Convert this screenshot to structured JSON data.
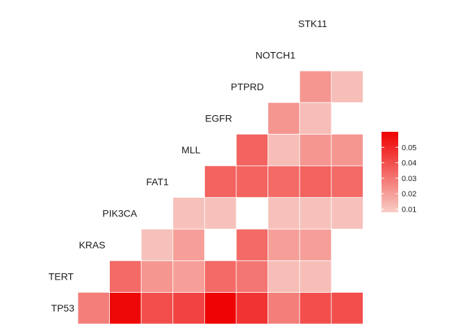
{
  "chart_data": {
    "type": "heatmap",
    "title": "",
    "genes": [
      "TP53",
      "TERT",
      "KRAS",
      "PIK3CA",
      "FAT1",
      "MLL",
      "EGFR",
      "PTPRD",
      "NOTCH1",
      "STK11"
    ],
    "cells": [
      {
        "row": "TP53",
        "col": "TERT",
        "value": 0.028
      },
      {
        "row": "TP53",
        "col": "KRAS",
        "value": 0.058
      },
      {
        "row": "TP53",
        "col": "PIK3CA",
        "value": 0.04
      },
      {
        "row": "TP53",
        "col": "FAT1",
        "value": 0.043
      },
      {
        "row": "TP53",
        "col": "MLL",
        "value": 0.059
      },
      {
        "row": "TP53",
        "col": "EGFR",
        "value": 0.047
      },
      {
        "row": "TP53",
        "col": "PTPRD",
        "value": 0.028
      },
      {
        "row": "TP53",
        "col": "NOTCH1",
        "value": 0.04
      },
      {
        "row": "TP53",
        "col": "STK11",
        "value": 0.04
      },
      {
        "row": "TERT",
        "col": "KRAS",
        "value": 0.033
      },
      {
        "row": "TERT",
        "col": "PIK3CA",
        "value": 0.022
      },
      {
        "row": "TERT",
        "col": "FAT1",
        "value": 0.02
      },
      {
        "row": "TERT",
        "col": "MLL",
        "value": 0.033
      },
      {
        "row": "TERT",
        "col": "EGFR",
        "value": 0.03
      },
      {
        "row": "TERT",
        "col": "PTPRD",
        "value": 0.012
      },
      {
        "row": "TERT",
        "col": "NOTCH1",
        "value": 0.012
      },
      {
        "row": "KRAS",
        "col": "PIK3CA",
        "value": 0.011
      },
      {
        "row": "KRAS",
        "col": "FAT1",
        "value": 0.02
      },
      {
        "row": "KRAS",
        "col": "EGFR",
        "value": 0.033
      },
      {
        "row": "KRAS",
        "col": "PTPRD",
        "value": 0.02
      },
      {
        "row": "KRAS",
        "col": "NOTCH1",
        "value": 0.02
      },
      {
        "row": "PIK3CA",
        "col": "FAT1",
        "value": 0.011
      },
      {
        "row": "PIK3CA",
        "col": "MLL",
        "value": 0.011
      },
      {
        "row": "PIK3CA",
        "col": "PTPRD",
        "value": 0.011
      },
      {
        "row": "PIK3CA",
        "col": "NOTCH1",
        "value": 0.011
      },
      {
        "row": "PIK3CA",
        "col": "STK11",
        "value": 0.011
      },
      {
        "row": "FAT1",
        "col": "MLL",
        "value": 0.035
      },
      {
        "row": "FAT1",
        "col": "EGFR",
        "value": 0.035
      },
      {
        "row": "FAT1",
        "col": "PTPRD",
        "value": 0.033
      },
      {
        "row": "FAT1",
        "col": "NOTCH1",
        "value": 0.035
      },
      {
        "row": "FAT1",
        "col": "STK11",
        "value": 0.033
      },
      {
        "row": "MLL",
        "col": "EGFR",
        "value": 0.035
      },
      {
        "row": "MLL",
        "col": "PTPRD",
        "value": 0.012
      },
      {
        "row": "MLL",
        "col": "NOTCH1",
        "value": 0.022
      },
      {
        "row": "MLL",
        "col": "STK11",
        "value": 0.022
      },
      {
        "row": "EGFR",
        "col": "PTPRD",
        "value": 0.022
      },
      {
        "row": "EGFR",
        "col": "NOTCH1",
        "value": 0.012
      },
      {
        "row": "PTPRD",
        "col": "NOTCH1",
        "value": 0.022
      },
      {
        "row": "PTPRD",
        "col": "STK11",
        "value": 0.012
      }
    ],
    "legend": {
      "range": [
        0.008,
        0.06
      ],
      "ticks": [
        "0.05",
        "0.04",
        "0.03",
        "0.02",
        "0.01"
      ],
      "tick_values": [
        0.05,
        0.04,
        0.03,
        0.02,
        0.01
      ],
      "low_color": "#f8cdc6",
      "high_color": "#ee0000",
      "placement": "right"
    }
  }
}
